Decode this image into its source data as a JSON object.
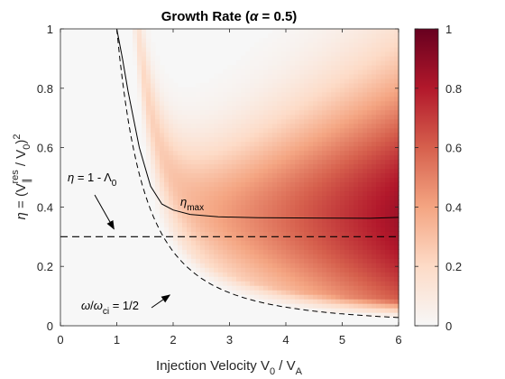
{
  "chart_data": {
    "type": "heatmap",
    "title": "Growth Rate (α = 0.5)",
    "xlabel": "Injection Velocity V0 / VA",
    "ylabel": "η = (V∥res / V0)^2",
    "xlim": [
      0,
      6
    ],
    "ylim": [
      0,
      1
    ],
    "x_ticks": [
      "0",
      "1",
      "2",
      "3",
      "4",
      "5",
      "6"
    ],
    "y_ticks": [
      "0",
      "0.2",
      "0.4",
      "0.6",
      "0.8",
      "1"
    ],
    "colorbar": {
      "range": [
        0,
        1
      ],
      "ticks": [
        "0",
        "0.2",
        "0.4",
        "0.6",
        "0.8",
        "1"
      ],
      "colormap": [
        "#f7f7f7",
        "#fddbc7",
        "#f4a582",
        "#d6604d",
        "#b2182b",
        "#67001f"
      ]
    },
    "series": [
      {
        "name": "ηmax",
        "style": "solid",
        "points": [
          [
            1.0,
            1.0
          ],
          [
            1.1,
            0.9
          ],
          [
            1.2,
            0.79
          ],
          [
            1.4,
            0.6
          ],
          [
            1.6,
            0.47
          ],
          [
            1.8,
            0.41
          ],
          [
            2.0,
            0.39
          ],
          [
            2.3,
            0.375
          ],
          [
            2.8,
            0.367
          ],
          [
            3.5,
            0.364
          ],
          [
            4.5,
            0.363
          ],
          [
            5.5,
            0.362
          ],
          [
            6.0,
            0.365
          ]
        ]
      },
      {
        "name": "ω/ωci = 1/2",
        "style": "dashed",
        "points": [
          [
            1.0,
            1.0
          ],
          [
            1.2,
            0.694
          ],
          [
            1.4,
            0.51
          ],
          [
            1.6,
            0.391
          ],
          [
            1.8,
            0.309
          ],
          [
            2.0,
            0.25
          ],
          [
            2.5,
            0.16
          ],
          [
            3.0,
            0.111
          ],
          [
            3.5,
            0.082
          ],
          [
            4.0,
            0.0625
          ],
          [
            4.5,
            0.049
          ],
          [
            5.0,
            0.04
          ],
          [
            5.5,
            0.033
          ],
          [
            6.0,
            0.028
          ]
        ]
      },
      {
        "name": "η = 1 - Λ0",
        "style": "dashed",
        "points": [
          [
            0,
            0.3
          ],
          [
            6,
            0.3
          ]
        ]
      }
    ],
    "annotations": [
      {
        "text": "η = 1 - Λ0",
        "arrow_to": [
          0.95,
          0.32
        ]
      },
      {
        "text": "ηmax"
      },
      {
        "text": "ω/ωci = 1/2",
        "arrow_to": [
          2.5,
          0.14
        ]
      }
    ],
    "grid": false,
    "background": "#f7f7f7"
  }
}
